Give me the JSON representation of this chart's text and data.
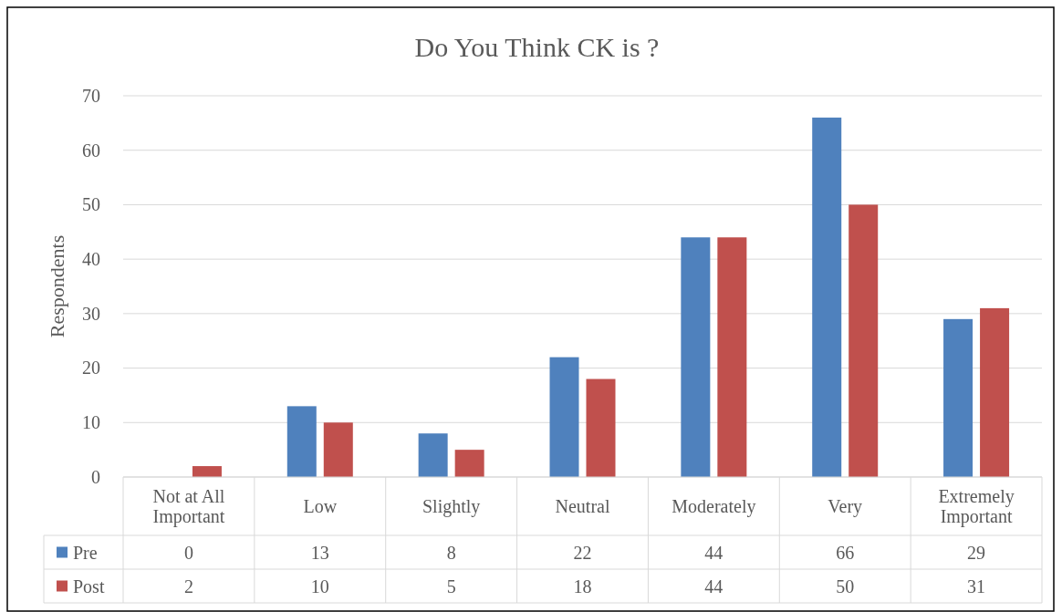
{
  "chart_data": {
    "type": "bar",
    "title": "Do You Think CK is ?",
    "ylabel": "Respondents",
    "categories": [
      "Not at All Important",
      "Low",
      "Slightly",
      "Neutral",
      "Moderately",
      "Very",
      "Extremely Important"
    ],
    "series": [
      {
        "name": "Pre",
        "color": "#4f81bd",
        "values": [
          0,
          13,
          8,
          22,
          44,
          66,
          29
        ]
      },
      {
        "name": "Post",
        "color": "#c0504d",
        "values": [
          2,
          10,
          5,
          18,
          44,
          50,
          31
        ]
      }
    ],
    "ylim": [
      0,
      70
    ],
    "yticks": [
      0,
      10,
      20,
      30,
      40,
      50,
      60,
      70
    ],
    "grid": "y",
    "legend": "bottom",
    "data_labels": true
  }
}
